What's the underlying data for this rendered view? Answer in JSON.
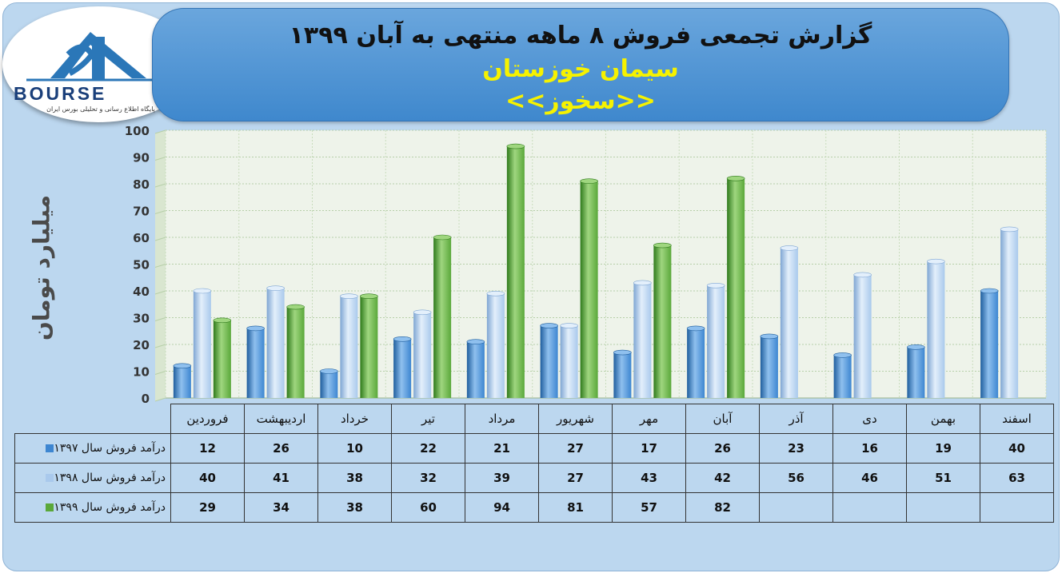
{
  "header": {
    "title": "گزارش تجمعی فروش ۸ ماهه منتهی به آبان ۱۳۹۹",
    "company": "سیمان خوزستان",
    "ticker": "<<سخوز>>"
  },
  "logo": {
    "word": "BOURSE",
    "tagline": "پایگاه اطلاع رسانی و تحلیلی بورس ایران"
  },
  "colors": {
    "series_1397": "#3d86d1",
    "series_1398": "#a9c9ec",
    "series_1399": "#5aa83a"
  },
  "chart_data": {
    "type": "bar",
    "title": "گزارش تجمعی فروش ۸ ماهه منتهی به آبان ۱۳۹۹",
    "ylabel": "میلیارد تومان",
    "xlabel": "",
    "ylim": [
      0,
      100
    ],
    "yticks": [
      0,
      10,
      20,
      30,
      40,
      50,
      60,
      70,
      80,
      90,
      100
    ],
    "grid": true,
    "categories": [
      "فروردین",
      "اردیبهشت",
      "خرداد",
      "تیر",
      "مرداد",
      "شهریور",
      "مهر",
      "آبان",
      "آذر",
      "دی",
      "بهمن",
      "اسفند"
    ],
    "series": [
      {
        "name": "درآمد فروش سال ۱۳۹۷",
        "values": [
          12,
          26,
          10,
          22,
          21,
          27,
          17,
          26,
          23,
          16,
          19,
          40
        ]
      },
      {
        "name": "درآمد فروش سال ۱۳۹۸",
        "values": [
          40,
          41,
          38,
          32,
          39,
          27,
          43,
          42,
          56,
          46,
          51,
          63
        ]
      },
      {
        "name": "درآمد فروش سال ۱۳۹۹",
        "values": [
          29,
          34,
          38,
          60,
          94,
          81,
          57,
          82,
          null,
          null,
          null,
          null
        ]
      }
    ]
  }
}
